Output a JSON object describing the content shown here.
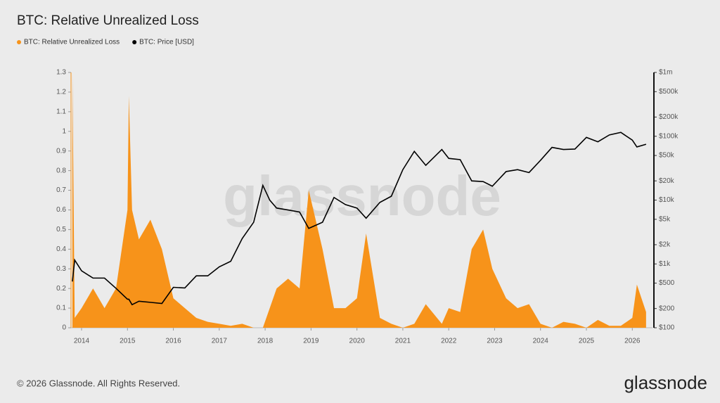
{
  "chart_data": {
    "type": "line",
    "title": "BTC: Relative Unrealized Loss",
    "watermark": "glassnode",
    "footer": "© 2026 Glassnode. All Rights Reserved.",
    "logo": "glassnode",
    "x": [
      2013.8,
      2013.85,
      2014.0,
      2014.25,
      2014.5,
      2014.75,
      2015.0,
      2015.03,
      2015.1,
      2015.25,
      2015.5,
      2015.75,
      2016.0,
      2016.25,
      2016.5,
      2016.75,
      2017.0,
      2017.25,
      2017.5,
      2017.75,
      2017.95,
      2018.1,
      2018.25,
      2018.5,
      2018.75,
      2018.95,
      2019.25,
      2019.5,
      2019.75,
      2020.0,
      2020.2,
      2020.5,
      2020.75,
      2021.0,
      2021.25,
      2021.5,
      2021.85,
      2022.0,
      2022.25,
      2022.5,
      2022.75,
      2022.95,
      2023.25,
      2023.5,
      2023.75,
      2024.0,
      2024.25,
      2024.5,
      2024.75,
      2025.0,
      2025.25,
      2025.5,
      2025.75,
      2026.0,
      2026.1,
      2026.3
    ],
    "xlim": [
      2013.77,
      2026.44
    ],
    "xticks": [
      2014,
      2015,
      2016,
      2017,
      2018,
      2019,
      2020,
      2021,
      2022,
      2023,
      2024,
      2025,
      2026
    ],
    "ylim": [
      0,
      1.3
    ],
    "yticks": [
      0,
      0.1,
      0.2,
      0.3,
      0.4,
      0.5,
      0.6,
      0.7,
      0.8,
      0.9,
      1,
      1.1,
      1.2,
      1.3
    ],
    "y2lim": [
      100,
      1000000
    ],
    "y2log": true,
    "y2ticks": [
      {
        "value": 100,
        "label": "$100"
      },
      {
        "value": 200,
        "label": "$200"
      },
      {
        "value": 500,
        "label": "$500"
      },
      {
        "value": 1000,
        "label": "$1k"
      },
      {
        "value": 2000,
        "label": "$2k"
      },
      {
        "value": 5000,
        "label": "$5k"
      },
      {
        "value": 10000,
        "label": "$10k"
      },
      {
        "value": 20000,
        "label": "$20k"
      },
      {
        "value": 50000,
        "label": "$50k"
      },
      {
        "value": 100000,
        "label": "$100k"
      },
      {
        "value": 200000,
        "label": "$200k"
      },
      {
        "value": 500000,
        "label": "$500k"
      },
      {
        "value": 1000000,
        "label": "$1m"
      }
    ],
    "series": [
      {
        "name": "BTC: Relative Unrealized Loss",
        "color": "#f7931a",
        "style": "area",
        "values": [
          1.3,
          0.05,
          0.1,
          0.2,
          0.1,
          0.2,
          0.6,
          1.18,
          0.6,
          0.45,
          0.55,
          0.4,
          0.15,
          0.1,
          0.05,
          0.03,
          0.02,
          0.01,
          0.02,
          0,
          0,
          0.1,
          0.2,
          0.25,
          0.2,
          0.7,
          0.4,
          0.1,
          0.1,
          0.15,
          0.48,
          0.05,
          0.02,
          0,
          0.02,
          0.12,
          0.02,
          0.1,
          0.08,
          0.4,
          0.5,
          0.3,
          0.15,
          0.1,
          0.12,
          0.02,
          0,
          0.03,
          0.02,
          0,
          0.04,
          0.01,
          0.01,
          0.05,
          0.22,
          0.08
        ]
      },
      {
        "name": "BTC: Price [USD]",
        "color": "#000000",
        "style": "line",
        "axis": "y2",
        "values": [
          530,
          1150,
          780,
          600,
          600,
          415,
          280,
          280,
          230,
          260,
          250,
          240,
          430,
          420,
          650,
          650,
          900,
          1100,
          2500,
          4500,
          17000,
          10000,
          7500,
          7000,
          6500,
          3600,
          4500,
          11000,
          8500,
          7500,
          5200,
          9200,
          11500,
          30000,
          58000,
          35000,
          62000,
          45000,
          43000,
          20000,
          19500,
          16500,
          28000,
          30000,
          27000,
          42000,
          67000,
          62000,
          63000,
          96000,
          82000,
          105000,
          115000,
          87000,
          68000,
          75000
        ]
      }
    ]
  }
}
